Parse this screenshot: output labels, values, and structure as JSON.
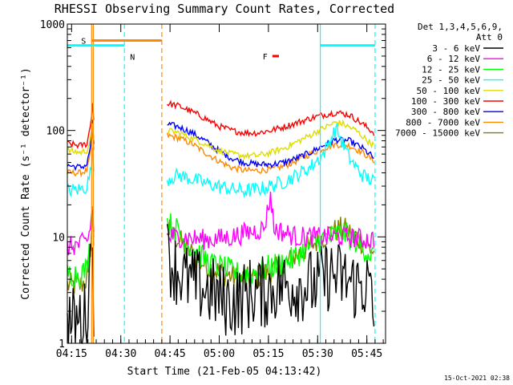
{
  "chart_data": {
    "type": "line",
    "title": "RHESSI Observing Summary Count Rates, Corrected",
    "xlabel": "Start Time (21-Feb-05 04:13:42)",
    "ylabel": "Corrected Count Rate (s⁻¹ detector⁻¹)",
    "yscale": "log",
    "ylim": [
      1,
      1000
    ],
    "xlim_minutes": [
      0,
      97
    ],
    "xticks": [
      {
        "label": "04:15",
        "t": 1.3
      },
      {
        "label": "04:30",
        "t": 16.3
      },
      {
        "label": "04:45",
        "t": 31.3
      },
      {
        "label": "05:00",
        "t": 46.3
      },
      {
        "label": "05:15",
        "t": 61.3
      },
      {
        "label": "05:30",
        "t": 76.3
      },
      {
        "label": "05:45",
        "t": 91.3
      }
    ],
    "yticks": [
      {
        "label": "1",
        "v": 1
      },
      {
        "label": "10",
        "v": 10
      },
      {
        "label": "100",
        "v": 100
      },
      {
        "label": "1000",
        "v": 1000
      }
    ],
    "legend_header": [
      "Det 1,3,4,5,6,9,",
      "Att 0"
    ],
    "data_gaps_minutes": [
      [
        8.1,
        30.2
      ]
    ],
    "series": [
      {
        "name": "3 - 6 keV",
        "color": "#000000",
        "values": [
          [
            0.0,
            1.5
          ],
          [
            3.0,
            1.6
          ],
          [
            6.0,
            1.8
          ],
          [
            7.0,
            6.0
          ],
          [
            7.7,
            15.0
          ],
          [
            8.1,
            2.0
          ],
          [
            30.2,
            7.0
          ],
          [
            33.0,
            5.0
          ],
          [
            36.0,
            4.0
          ],
          [
            40.0,
            3.5
          ],
          [
            44.0,
            3.0
          ],
          [
            48.0,
            2.5
          ],
          [
            52.0,
            2.5
          ],
          [
            56.0,
            3.0
          ],
          [
            60.0,
            3.0
          ],
          [
            64.0,
            3.5
          ],
          [
            68.0,
            3.5
          ],
          [
            72.0,
            3.5
          ],
          [
            76.0,
            3.5
          ],
          [
            80.0,
            4.5
          ],
          [
            84.0,
            4.0
          ],
          [
            88.0,
            3.5
          ],
          [
            92.0,
            3.5
          ],
          [
            93.5,
            1.5
          ]
        ]
      },
      {
        "name": "6 - 12 keV",
        "color": "#ff00ff",
        "values": [
          [
            0.0,
            8.0
          ],
          [
            4.0,
            8.5
          ],
          [
            6.0,
            9.0
          ],
          [
            7.0,
            12.0
          ],
          [
            7.7,
            20.0
          ],
          [
            8.1,
            10.0
          ],
          [
            30.2,
            10.0
          ],
          [
            35.0,
            10.0
          ],
          [
            40.0,
            9.5
          ],
          [
            45.0,
            9.5
          ],
          [
            50.0,
            10.0
          ],
          [
            55.0,
            11.0
          ],
          [
            60.0,
            12.0
          ],
          [
            62.0,
            25.0
          ],
          [
            63.0,
            12.0
          ],
          [
            66.0,
            11.0
          ],
          [
            70.0,
            10.0
          ],
          [
            75.0,
            10.0
          ],
          [
            80.0,
            10.0
          ],
          [
            85.0,
            10.0
          ],
          [
            90.0,
            9.5
          ],
          [
            93.5,
            9.5
          ]
        ]
      },
      {
        "name": "12 - 25 keV",
        "color": "#00ff00",
        "values": [
          [
            0.0,
            4.5
          ],
          [
            4.0,
            4.5
          ],
          [
            6.0,
            5.0
          ],
          [
            7.0,
            9.0
          ],
          [
            7.7,
            18.0
          ],
          [
            8.1,
            10.0
          ],
          [
            30.2,
            14.0
          ],
          [
            33.0,
            12.0
          ],
          [
            36.0,
            9.0
          ],
          [
            40.0,
            7.0
          ],
          [
            44.0,
            5.5
          ],
          [
            48.0,
            5.0
          ],
          [
            52.0,
            4.5
          ],
          [
            56.0,
            4.5
          ],
          [
            60.0,
            5.0
          ],
          [
            64.0,
            5.5
          ],
          [
            68.0,
            6.0
          ],
          [
            72.0,
            7.5
          ],
          [
            76.0,
            9.0
          ],
          [
            80.0,
            10.0
          ],
          [
            84.0,
            11.0
          ],
          [
            88.0,
            9.0
          ],
          [
            92.0,
            7.0
          ],
          [
            93.5,
            6.5
          ]
        ]
      },
      {
        "name": "25 - 50 keV",
        "color": "#00ffff",
        "values": [
          [
            0.0,
            27.0
          ],
          [
            4.0,
            28.0
          ],
          [
            6.0,
            30.0
          ],
          [
            7.0,
            40.0
          ],
          [
            7.7,
            60.0
          ],
          [
            8.1,
            40.0
          ],
          [
            30.2,
            35.0
          ],
          [
            34.0,
            38.0
          ],
          [
            38.0,
            35.0
          ],
          [
            42.0,
            32.0
          ],
          [
            46.0,
            30.0
          ],
          [
            50.0,
            28.0
          ],
          [
            54.0,
            27.0
          ],
          [
            58.0,
            28.0
          ],
          [
            62.0,
            30.0
          ],
          [
            66.0,
            33.0
          ],
          [
            70.0,
            38.0
          ],
          [
            74.0,
            45.0
          ],
          [
            78.0,
            60.0
          ],
          [
            80.0,
            80.0
          ],
          [
            82.0,
            105.0
          ],
          [
            84.0,
            75.0
          ],
          [
            86.0,
            55.0
          ],
          [
            88.0,
            45.0
          ],
          [
            90.0,
            38.0
          ],
          [
            93.5,
            33.0
          ]
        ]
      },
      {
        "name": "50 - 100 keV",
        "color": "#dddd00",
        "values": [
          [
            0.0,
            65.0
          ],
          [
            4.0,
            62.0
          ],
          [
            6.0,
            65.0
          ],
          [
            7.0,
            80.0
          ],
          [
            7.7,
            110.0
          ],
          [
            8.1,
            80.0
          ],
          [
            30.2,
            100.0
          ],
          [
            34.0,
            95.0
          ],
          [
            38.0,
            85.0
          ],
          [
            42.0,
            75.0
          ],
          [
            46.0,
            65.0
          ],
          [
            50.0,
            60.0
          ],
          [
            54.0,
            58.0
          ],
          [
            58.0,
            58.0
          ],
          [
            62.0,
            62.0
          ],
          [
            66.0,
            68.0
          ],
          [
            70.0,
            78.0
          ],
          [
            74.0,
            90.0
          ],
          [
            78.0,
            105.0
          ],
          [
            82.0,
            120.0
          ],
          [
            84.0,
            115.0
          ],
          [
            88.0,
            100.0
          ],
          [
            92.0,
            78.0
          ],
          [
            93.5,
            72.0
          ]
        ]
      },
      {
        "name": "100 - 300 keV",
        "color": "#ff0000",
        "values": [
          [
            0.0,
            75.0
          ],
          [
            4.0,
            72.0
          ],
          [
            6.0,
            75.0
          ],
          [
            7.0,
            110.0
          ],
          [
            7.7,
            180.0
          ],
          [
            8.1,
            120.0
          ],
          [
            30.2,
            180.0
          ],
          [
            34.0,
            170.0
          ],
          [
            38.0,
            150.0
          ],
          [
            42.0,
            130.0
          ],
          [
            46.0,
            110.0
          ],
          [
            50.0,
            100.0
          ],
          [
            54.0,
            95.0
          ],
          [
            58.0,
            95.0
          ],
          [
            62.0,
            100.0
          ],
          [
            66.0,
            108.0
          ],
          [
            70.0,
            118.0
          ],
          [
            74.0,
            130.0
          ],
          [
            78.0,
            140.0
          ],
          [
            82.0,
            148.0
          ],
          [
            86.0,
            140.0
          ],
          [
            90.0,
            115.0
          ],
          [
            93.5,
            95.0
          ]
        ]
      },
      {
        "name": "300 - 800 keV",
        "color": "#0000ff",
        "values": [
          [
            0.0,
            47.0
          ],
          [
            4.0,
            45.0
          ],
          [
            6.0,
            48.0
          ],
          [
            7.0,
            70.0
          ],
          [
            7.7,
            118.0
          ],
          [
            8.1,
            70.0
          ],
          [
            30.2,
            115.0
          ],
          [
            34.0,
            108.0
          ],
          [
            38.0,
            95.0
          ],
          [
            42.0,
            80.0
          ],
          [
            46.0,
            65.0
          ],
          [
            50.0,
            55.0
          ],
          [
            54.0,
            50.0
          ],
          [
            58.0,
            48.0
          ],
          [
            62.0,
            48.0
          ],
          [
            66.0,
            50.0
          ],
          [
            70.0,
            55.0
          ],
          [
            74.0,
            62.0
          ],
          [
            78.0,
            72.0
          ],
          [
            82.0,
            82.0
          ],
          [
            86.0,
            80.0
          ],
          [
            90.0,
            68.0
          ],
          [
            93.5,
            55.0
          ]
        ]
      },
      {
        "name": "800 - 7000 keV",
        "color": "#ff8800",
        "values": [
          [
            0.0,
            40.0
          ],
          [
            4.0,
            40.0
          ],
          [
            6.0,
            42.0
          ],
          [
            7.0,
            60.0
          ],
          [
            7.7,
            100.0
          ],
          [
            8.1,
            60.0
          ],
          [
            30.2,
            90.0
          ],
          [
            34.0,
            85.0
          ],
          [
            38.0,
            75.0
          ],
          [
            42.0,
            62.0
          ],
          [
            46.0,
            52.0
          ],
          [
            50.0,
            45.0
          ],
          [
            54.0,
            42.0
          ],
          [
            58.0,
            42.0
          ],
          [
            62.0,
            43.0
          ],
          [
            66.0,
            46.0
          ],
          [
            70.0,
            52.0
          ],
          [
            74.0,
            60.0
          ],
          [
            78.0,
            68.0
          ],
          [
            82.0,
            74.0
          ],
          [
            86.0,
            72.0
          ],
          [
            90.0,
            62.0
          ],
          [
            93.5,
            52.0
          ]
        ]
      },
      {
        "name": "7000 - 15000 keV",
        "color": "#808000",
        "values": [
          [
            0.0,
            3.5
          ],
          [
            4.0,
            3.5
          ],
          [
            6.0,
            4.0
          ],
          [
            7.0,
            8.0
          ],
          [
            7.7,
            16.0
          ],
          [
            8.1,
            10.0
          ],
          [
            30.2,
            12.0
          ],
          [
            33.0,
            10.0
          ],
          [
            36.0,
            8.0
          ],
          [
            40.0,
            6.0
          ],
          [
            44.0,
            5.0
          ],
          [
            48.0,
            4.5
          ],
          [
            52.0,
            4.0
          ],
          [
            56.0,
            4.0
          ],
          [
            60.0,
            4.5
          ],
          [
            64.0,
            5.0
          ],
          [
            68.0,
            6.0
          ],
          [
            72.0,
            7.5
          ],
          [
            76.0,
            9.0
          ],
          [
            80.0,
            11.0
          ],
          [
            84.0,
            12.0
          ],
          [
            88.0,
            10.0
          ],
          [
            92.0,
            8.0
          ],
          [
            93.5,
            7.0
          ]
        ]
      }
    ],
    "vertical_markers": [
      {
        "t": 7.4,
        "color": "#ff8800",
        "style": "solid"
      },
      {
        "t": 7.9,
        "color": "#ff8800",
        "style": "solid"
      },
      {
        "t": 17.4,
        "color": "#00ffff",
        "style": "dashed"
      },
      {
        "t": 28.8,
        "color": "#ff8800",
        "style": "dashed"
      },
      {
        "t": 77.1,
        "color": "#00ffff",
        "style": "solid"
      },
      {
        "t": 93.8,
        "color": "#00ffff",
        "style": "dashed"
      }
    ],
    "flag_bars": [
      {
        "label": "S",
        "color": "#ff8800",
        "t0": 7.4,
        "t1": 28.8,
        "level": 700
      },
      {
        "label": "N",
        "color": "#00ffff",
        "t0": 0.0,
        "t1": 17.4,
        "level": 630
      },
      {
        "label": "",
        "color": "#00ffff",
        "t0": 77.1,
        "t1": 93.8,
        "level": 630
      },
      {
        "label": "F",
        "color": "#ff0000",
        "t0": 62.5,
        "t1": 64.5,
        "level": 500
      }
    ],
    "timestamp": "15-Oct-2021 02:38"
  }
}
